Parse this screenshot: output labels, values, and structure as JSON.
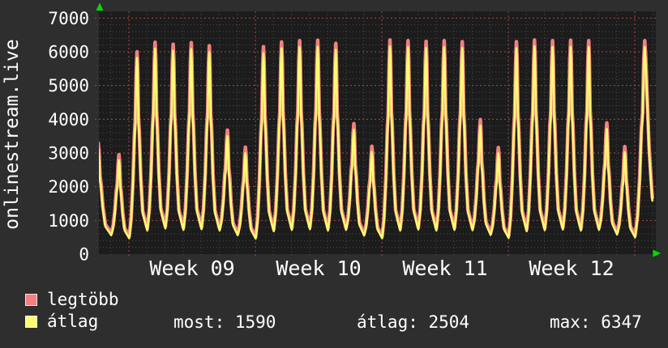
{
  "title": "onlinestream.live",
  "colors": {
    "outer_background": "#2e2e2e",
    "plot_background": "#1c1c1c",
    "minor_grid": "#4a4a4a",
    "major_grid": "#a94848",
    "text": "#ffffff",
    "axis_arrow": "#00dd00",
    "series_max": "#f28080",
    "series_avg": "#fbfb73"
  },
  "chart_data": {
    "type": "line",
    "title": "onlinestream.live",
    "x_tick_labels": [
      "Week 09",
      "Week 10",
      "Week 11",
      "Week 12"
    ],
    "y_ticks": [
      0,
      1000,
      2000,
      3000,
      4000,
      5000,
      6000,
      7000
    ],
    "ylim": [
      0,
      7200
    ],
    "grid": "minor gray dotted (200 units / 1 day), major red dotted (1000 units / 1 week)",
    "legend_position": "bottom-left",
    "x_axis": "about 31 days, Saturday before Week 09 through Monday after Week 12, weekday peaks high and weekend peaks low",
    "series": [
      {
        "name": "legtöbb",
        "color": "#f28080",
        "role": "daily maximum envelope",
        "day_peaks": [
          3300,
          2950,
          6000,
          6280,
          6220,
          6270,
          6180,
          3680,
          3170,
          6150,
          6290,
          6330,
          6340,
          6250,
          3870,
          3200,
          6347,
          6330,
          6310,
          6330,
          6300,
          3990,
          3160,
          6300,
          6347,
          6330,
          6340,
          6330,
          3890,
          3190,
          6330
        ]
      },
      {
        "name": "átlag",
        "color": "#fbfb73",
        "role": "daily average",
        "day_peaks": [
          3150,
          2790,
          5820,
          6090,
          6030,
          6080,
          5990,
          3500,
          3000,
          5960,
          6100,
          6140,
          6150,
          6060,
          3690,
          3030,
          6160,
          6140,
          6120,
          6140,
          6110,
          3810,
          2990,
          6110,
          6160,
          6140,
          6150,
          6140,
          3710,
          3020,
          6140
        ]
      }
    ],
    "day_dips": [
      700,
      560,
      470,
      700,
      760,
      720,
      740,
      700,
      560,
      460,
      680,
      720,
      740,
      700,
      720,
      550,
      470,
      700,
      730,
      700,
      720,
      710,
      570,
      480,
      680,
      710,
      730,
      700,
      720,
      580,
      500,
      600
    ],
    "max_dip_offset": 60,
    "last_value": 1590,
    "stats": {
      "most": 1590,
      "átlag": 2504,
      "max": 6347
    }
  },
  "legend": {
    "items": [
      {
        "label": "legtöbb",
        "color": "#f28080"
      },
      {
        "label": "átlag",
        "color": "#fbfb73"
      }
    ]
  },
  "stats_row": {
    "items": [
      {
        "text": "most: 1590"
      },
      {
        "text": "átlag: 2504"
      },
      {
        "text": "max: 6347"
      }
    ]
  }
}
